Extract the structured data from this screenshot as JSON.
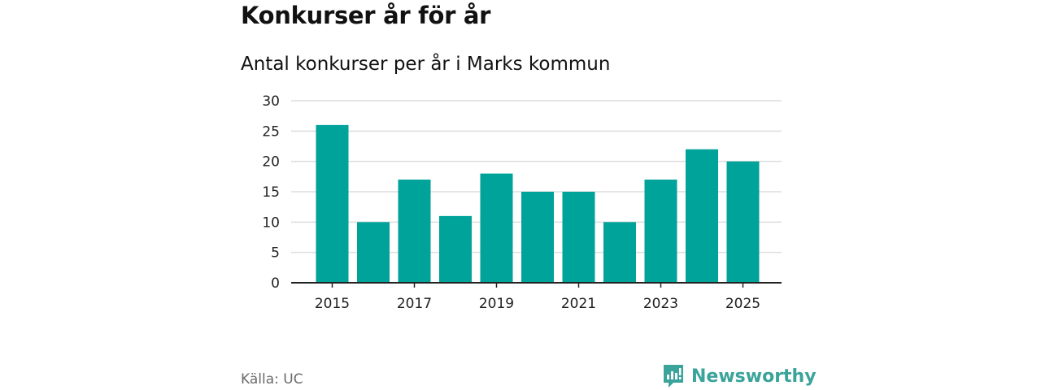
{
  "header": {
    "title": "Konkurser år för år",
    "subtitle": "Antal konkurser per år i Marks kommun"
  },
  "footer": {
    "source": "Källa: UC",
    "brand": "Newsworthy"
  },
  "colors": {
    "bar": "#00a39a",
    "grid": "#dddddd",
    "axis": "#222222",
    "brand": "#3aa39a"
  },
  "chart_data": {
    "type": "bar",
    "categories": [
      "2015",
      "2016",
      "2017",
      "2018",
      "2019",
      "2020",
      "2021",
      "2022",
      "2023",
      "2024",
      "2025"
    ],
    "values": [
      26,
      10,
      17,
      11,
      18,
      15,
      15,
      10,
      17,
      22,
      20
    ],
    "x_tick_labels": [
      "2015",
      "2017",
      "2019",
      "2021",
      "2023",
      "2025"
    ],
    "y_ticks": [
      0,
      5,
      10,
      15,
      20,
      25,
      30
    ],
    "ylim": [
      0,
      30
    ],
    "xlabel": "",
    "ylabel": "",
    "grid": true,
    "legend": "none"
  }
}
